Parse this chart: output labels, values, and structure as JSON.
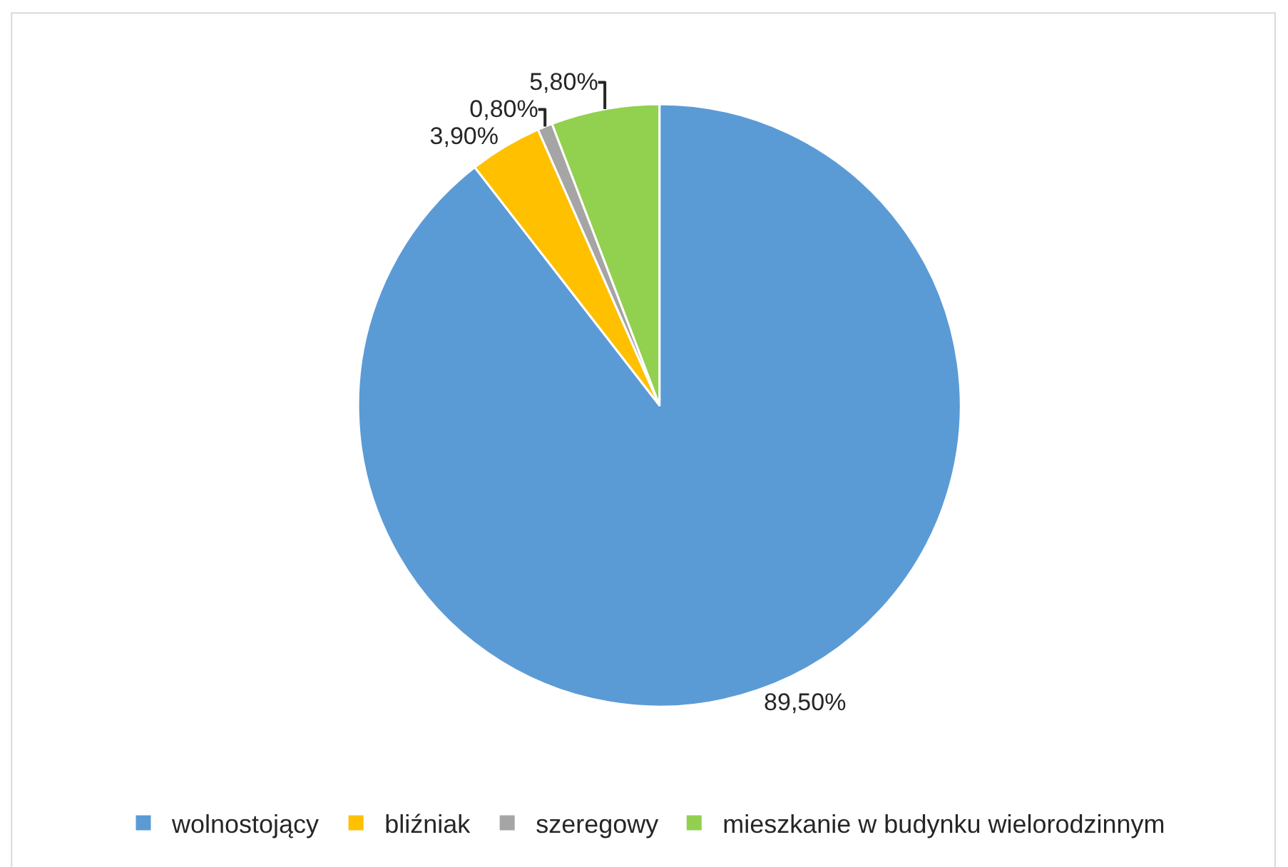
{
  "chart_data": {
    "type": "pie",
    "categories": [
      "wolnostojący",
      "bliźniak",
      "szeregowy",
      "mieszkanie w budynku wielorodzinnym"
    ],
    "values": [
      89.5,
      3.9,
      0.8,
      5.8
    ],
    "colors": [
      "#5b9bd5",
      "#ffc000",
      "#a5a5a5",
      "#92d050"
    ],
    "value_labels": [
      "89,50%",
      "3,90%",
      "0,80%",
      "5,80%"
    ],
    "legend": "bottom"
  }
}
